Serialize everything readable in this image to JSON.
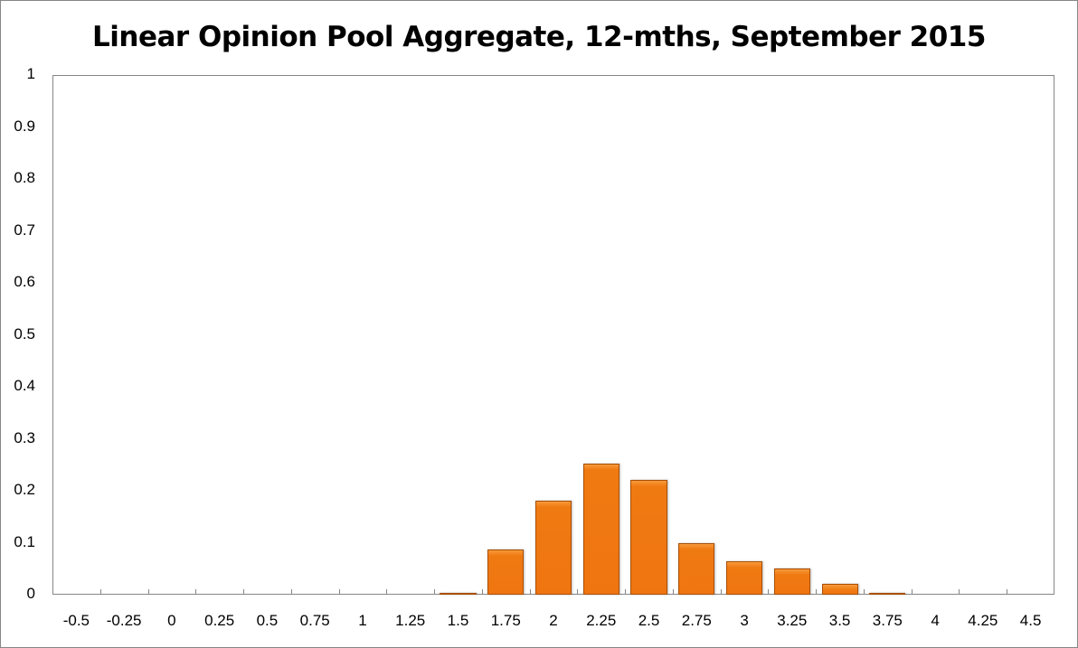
{
  "chart_data": {
    "type": "bar",
    "title": "Linear Opinion Pool Aggregate, 12-mths, September 2015",
    "xlabel": "",
    "ylabel": "",
    "ylim": [
      0,
      1
    ],
    "yticks": [
      "0",
      "0.1",
      "0.2",
      "0.3",
      "0.4",
      "0.5",
      "0.6",
      "0.7",
      "0.8",
      "0.9",
      "1"
    ],
    "categories": [
      "-0.5",
      "-0.25",
      "0",
      "0.25",
      "0.5",
      "0.75",
      "1",
      "1.25",
      "1.5",
      "1.75",
      "2",
      "2.25",
      "2.5",
      "2.75",
      "3",
      "3.25",
      "3.5",
      "3.75",
      "4",
      "4.25",
      "4.5"
    ],
    "values": [
      0,
      0,
      0,
      0,
      0,
      0,
      0,
      0,
      0.003,
      0.087,
      0.181,
      0.253,
      0.221,
      0.099,
      0.064,
      0.05,
      0.021,
      0.003,
      0,
      0,
      0
    ],
    "grid": false,
    "legend": "none",
    "bar_color": "#ef7511"
  }
}
